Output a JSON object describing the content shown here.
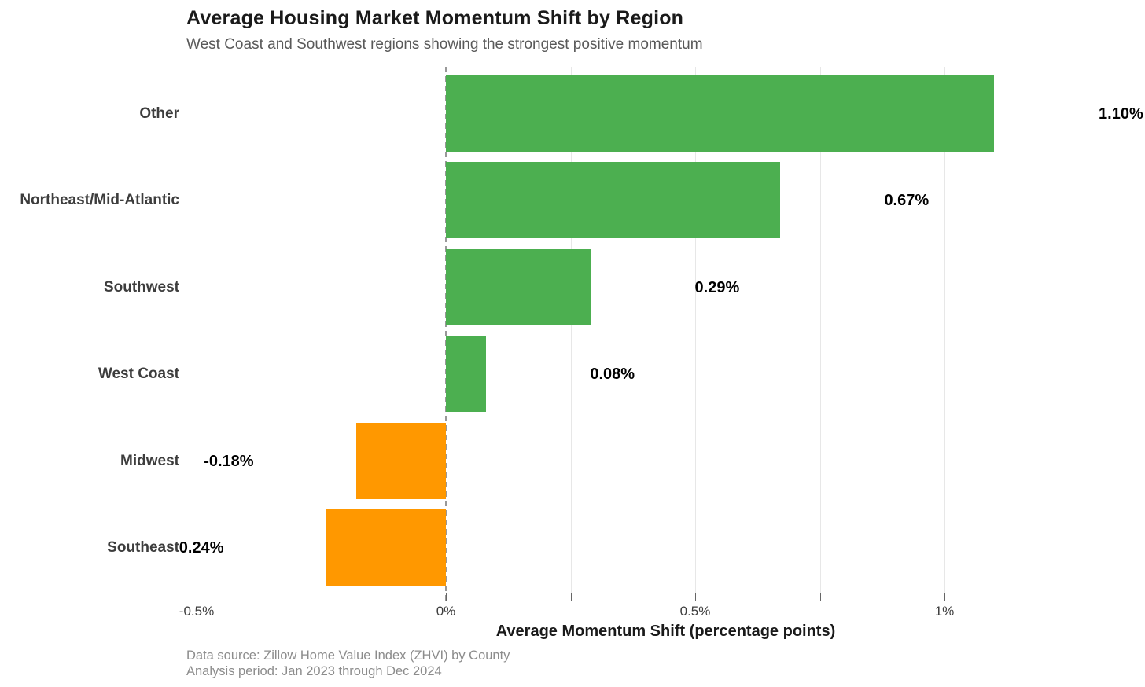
{
  "chart_data": {
    "type": "bar",
    "orientation": "horizontal",
    "title": "Average Housing Market Momentum Shift by Region",
    "subtitle": "West Coast and Southwest regions showing the strongest positive momentum",
    "xlabel": "Average Momentum Shift (percentage points)",
    "categories": [
      "Other",
      "Northeast/Mid-Atlantic",
      "Southwest",
      "West Coast",
      "Midwest",
      "Southeast"
    ],
    "values": [
      1.1,
      0.67,
      0.29,
      0.08,
      -0.18,
      -0.24
    ],
    "value_labels": [
      "1.10%",
      "0.67%",
      "0.29%",
      "0.08%",
      "-0.18%",
      "-0.24%"
    ],
    "x_ticks": [
      {
        "value": -0.5,
        "label": "-0.5%"
      },
      {
        "value": 0,
        "label": "0%"
      },
      {
        "value": 0.5,
        "label": "0.5%"
      },
      {
        "value": 1,
        "label": "1%"
      }
    ],
    "minor_tick_values": [
      -0.5,
      -0.25,
      0,
      0.25,
      0.5,
      0.75,
      1,
      1.25
    ],
    "gridline_values": [
      -0.5,
      -0.25,
      0.25,
      0.5,
      0.75,
      1,
      1.25
    ],
    "xlim": [
      -0.52,
      1.4
    ],
    "zero_line": true,
    "grid": "vertical",
    "legend": null,
    "colors": {
      "positive": "#4caf50",
      "negative": "#ff9800",
      "gridline": "#e7e7e7",
      "zero_line": "#999999",
      "title": "#1a1a1a",
      "subtitle": "#595959",
      "category_label": "#3d3d3d",
      "value_label": "#000000",
      "tick_label": "#3d3d3d",
      "footer": "#8c8c8c"
    }
  },
  "footer": {
    "line1": "Data source: Zillow Home Value Index (ZHVI) by County",
    "line2": "Analysis period: Jan 2023 through Dec 2024"
  }
}
